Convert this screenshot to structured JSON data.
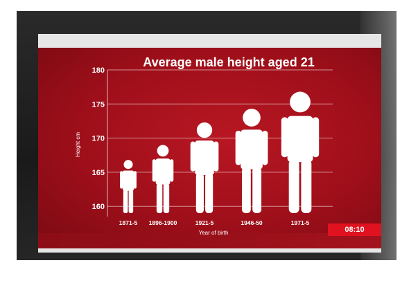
{
  "chart_data": {
    "type": "bar",
    "title": "Average male height aged 21",
    "xlabel": "Year of birth",
    "ylabel": "Height cm",
    "categories": [
      "1871-5",
      "1896-1900",
      "1921-5",
      "1946-50",
      "1971-5"
    ],
    "values": [
      166.8,
      169.0,
      172.3,
      174.3,
      176.8
    ],
    "yticks": [
      160,
      165,
      170,
      175,
      180
    ],
    "ylim": [
      158.5,
      180
    ],
    "grid": true,
    "marker": "person-icon"
  },
  "overlay": {
    "clock": "08:10"
  },
  "colors": {
    "background": "#9e0f1a",
    "gridline": "#ffffff",
    "figure": "#ffffff",
    "clock_bg": "#e0121f"
  }
}
